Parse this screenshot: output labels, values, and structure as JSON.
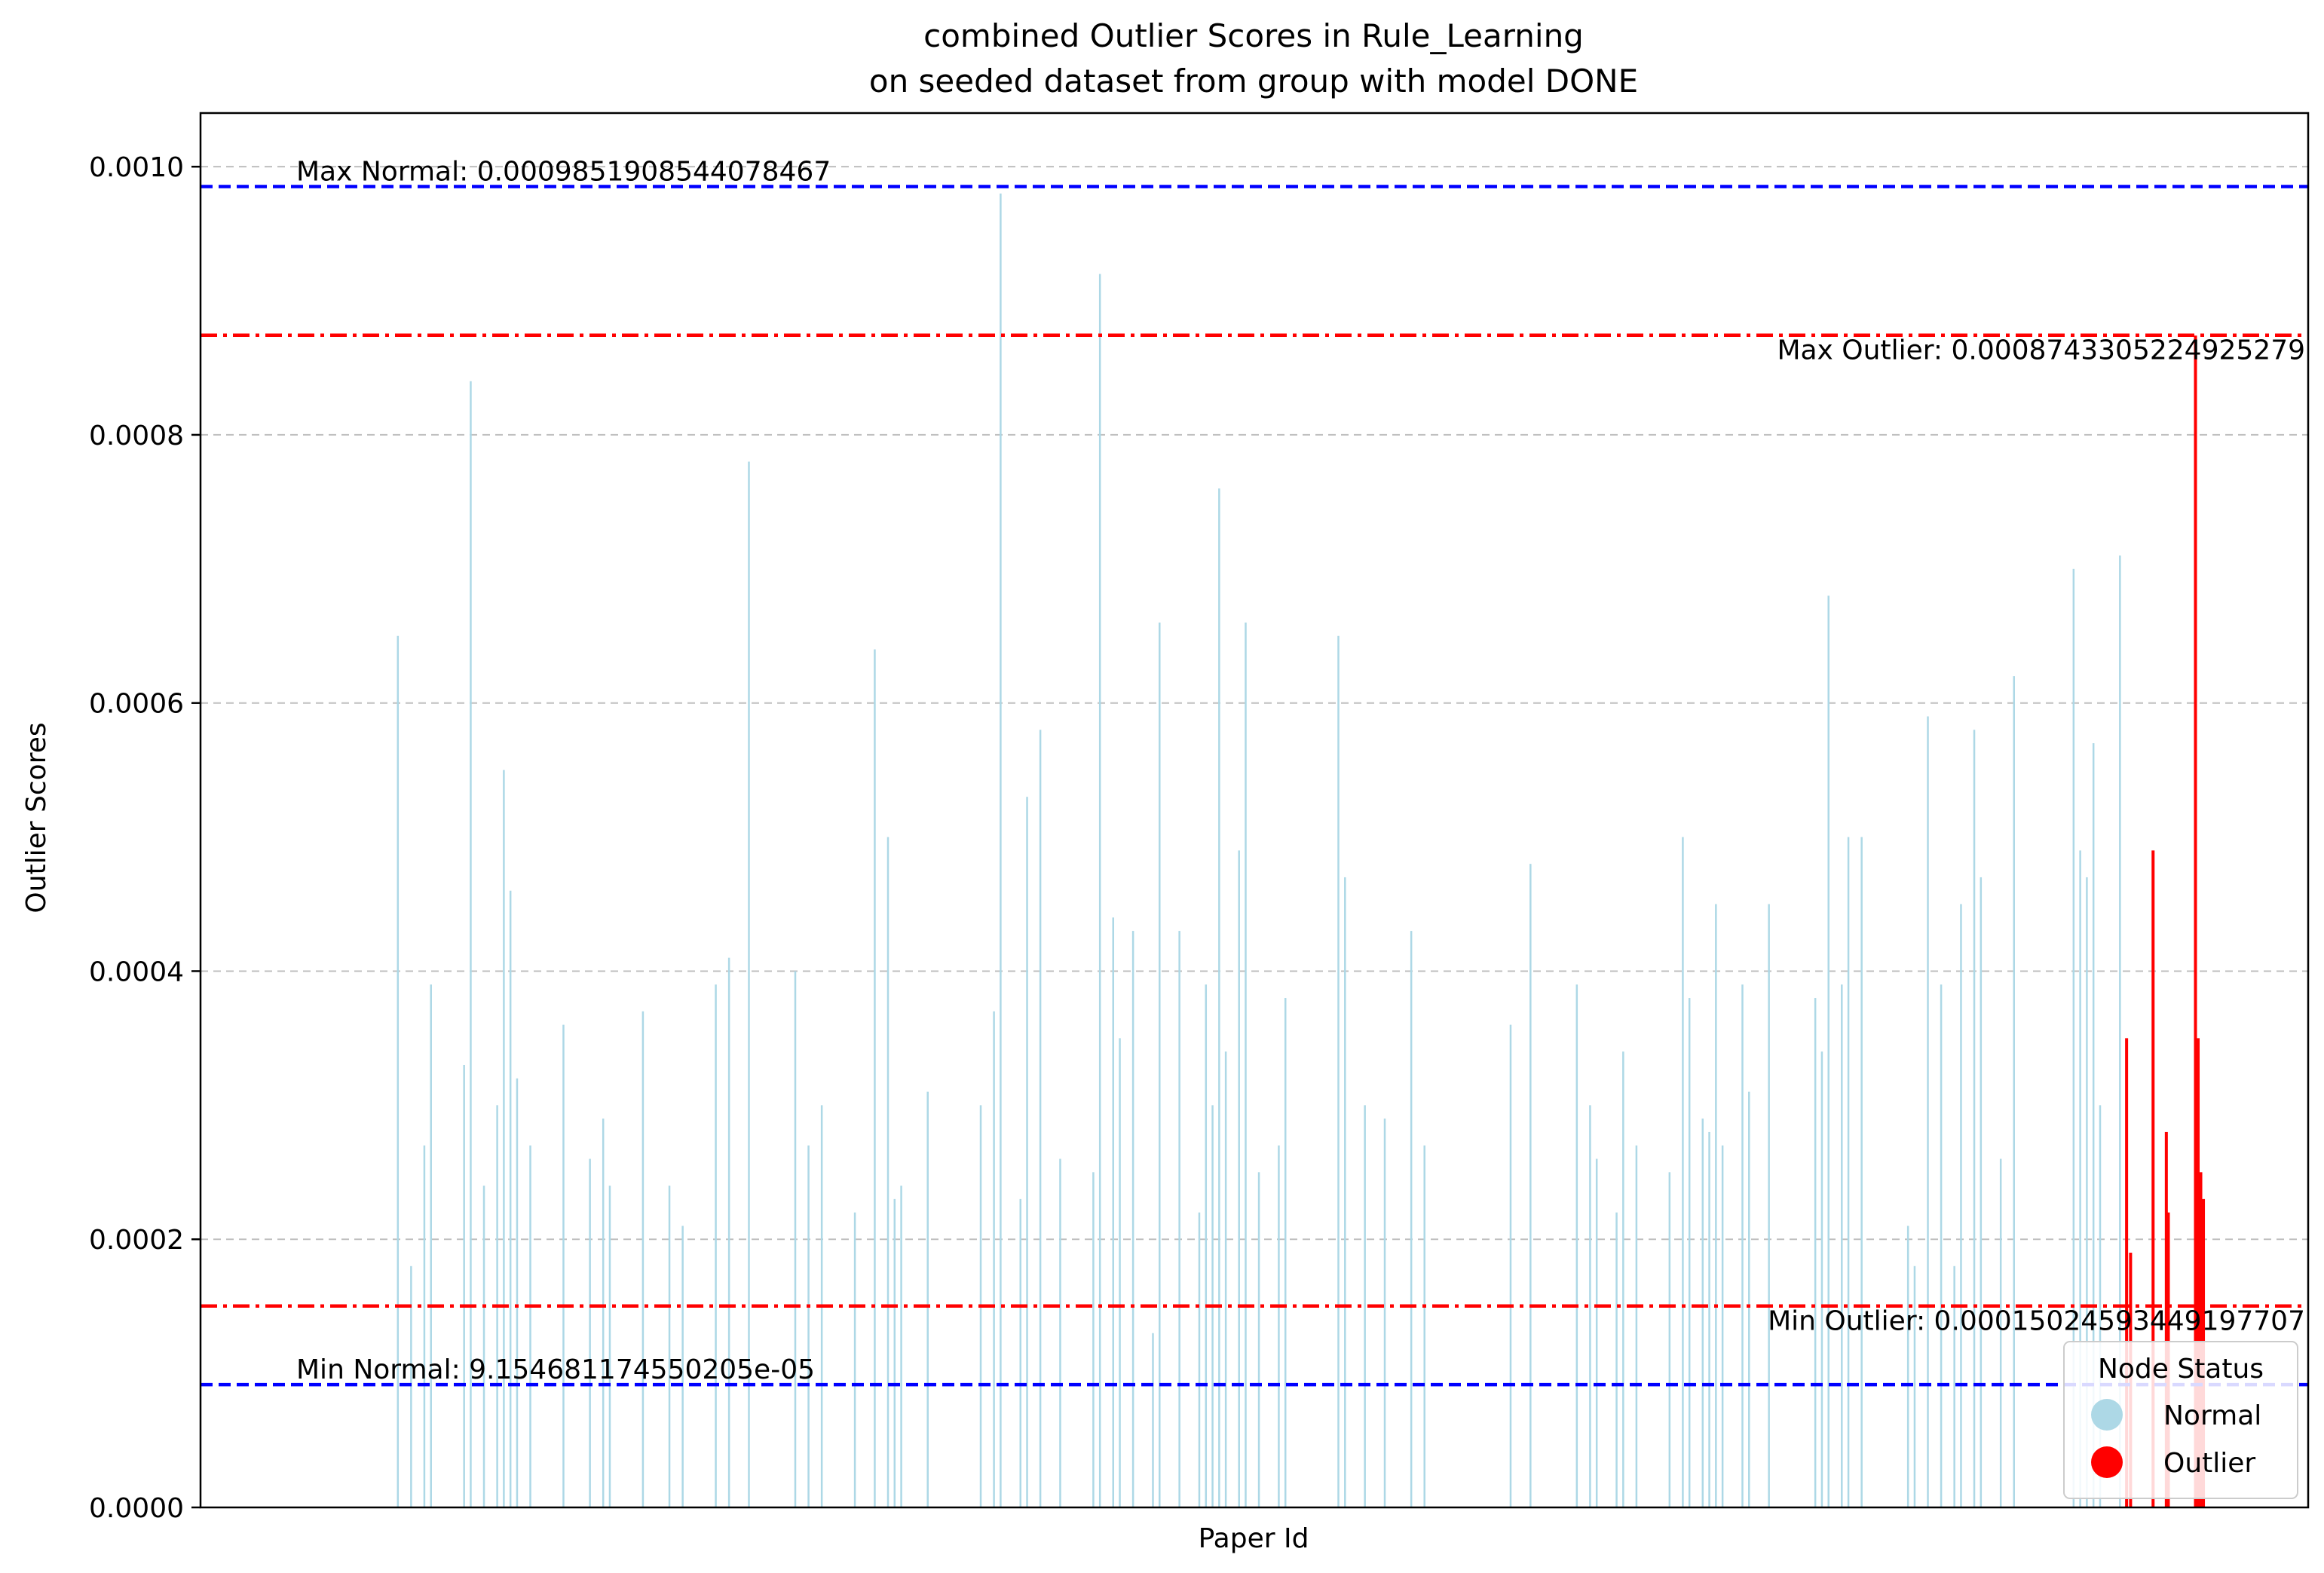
{
  "chart_data": {
    "type": "bar",
    "title_line1": "combined Outlier Scores in Rule_Learning",
    "title_line2": "on seeded dataset from group with model DONE",
    "xlabel": "Paper Id",
    "ylabel": "Outlier Scores",
    "ylim": [
      0,
      0.00104
    ],
    "yticks": [
      "0.0000",
      "0.0002",
      "0.0004",
      "0.0006",
      "0.0008",
      "0.0010"
    ],
    "grid": "y-dashed",
    "legend": {
      "title": "Node Status",
      "placement": "lower-right",
      "entries": [
        {
          "label": "Normal",
          "color": "#add8e6"
        },
        {
          "label": "Outlier",
          "color": "#ff0000"
        }
      ]
    },
    "reference_lines": [
      {
        "label": "Max Normal: 0.0009851908544078467",
        "value": 0.0009851908544078467,
        "color": "#0000ff",
        "style": "dashed",
        "label_align": "left"
      },
      {
        "label": "Max Outlier: 0.0008743305224925279",
        "value": 0.0008743305224925279,
        "color": "#ff0000",
        "style": "dashdot",
        "label_align": "right"
      },
      {
        "label": "Min Outlier: 0.00015024593449197707",
        "value": 0.00015024593449197707,
        "color": "#ff0000",
        "style": "dashdot",
        "label_align": "right"
      },
      {
        "label": "Min Normal: 9.154681174550205e-05",
        "value": 9.154681174550205e-05,
        "color": "#0000ff",
        "style": "dashed",
        "label_align": "left"
      }
    ],
    "x_count": 300,
    "series": [
      {
        "name": "Normal",
        "color": "#add8e6",
        "points": [
          [
            15,
            0.00065
          ],
          [
            17,
            0.00018
          ],
          [
            19,
            0.00027
          ],
          [
            20,
            0.00039
          ],
          [
            25,
            0.00033
          ],
          [
            26,
            0.00084
          ],
          [
            28,
            0.00024
          ],
          [
            30,
            0.0003
          ],
          [
            31,
            0.00055
          ],
          [
            32,
            0.00046
          ],
          [
            33,
            0.00032
          ],
          [
            35,
            0.00027
          ],
          [
            40,
            0.00036
          ],
          [
            44,
            0.00026
          ],
          [
            46,
            0.00029
          ],
          [
            47,
            0.00024
          ],
          [
            52,
            0.00037
          ],
          [
            56,
            0.00024
          ],
          [
            58,
            0.00021
          ],
          [
            63,
            0.00039
          ],
          [
            65,
            0.00041
          ],
          [
            68,
            0.00078
          ],
          [
            75,
            0.0004
          ],
          [
            77,
            0.00027
          ],
          [
            79,
            0.0003
          ],
          [
            84,
            0.00022
          ],
          [
            87,
            0.00064
          ],
          [
            89,
            0.0005
          ],
          [
            90,
            0.00023
          ],
          [
            91,
            0.00024
          ],
          [
            95,
            0.00031
          ],
          [
            103,
            0.0003
          ],
          [
            105,
            0.00037
          ],
          [
            106,
            0.00098
          ],
          [
            109,
            0.00023
          ],
          [
            110,
            0.00053
          ],
          [
            112,
            0.00058
          ],
          [
            115,
            0.00026
          ],
          [
            120,
            0.00025
          ],
          [
            121,
            0.00092
          ],
          [
            123,
            0.00044
          ],
          [
            124,
            0.00035
          ],
          [
            126,
            0.00043
          ],
          [
            129,
            0.00013
          ],
          [
            130,
            0.00066
          ],
          [
            133,
            0.00043
          ],
          [
            136,
            0.00022
          ],
          [
            137,
            0.00039
          ],
          [
            138,
            0.0003
          ],
          [
            139,
            0.00076
          ],
          [
            140,
            0.00034
          ],
          [
            142,
            0.00049
          ],
          [
            143,
            0.00066
          ],
          [
            145,
            0.00025
          ],
          [
            148,
            0.00027
          ],
          [
            149,
            0.00038
          ],
          [
            157,
            0.00065
          ],
          [
            158,
            0.00047
          ],
          [
            161,
            0.0003
          ],
          [
            164,
            0.00029
          ],
          [
            168,
            0.00043
          ],
          [
            170,
            0.00027
          ],
          [
            183,
            0.00036
          ],
          [
            186,
            0.00048
          ],
          [
            193,
            0.00039
          ],
          [
            195,
            0.0003
          ],
          [
            196,
            0.00026
          ],
          [
            199,
            0.00022
          ],
          [
            200,
            0.00034
          ],
          [
            202,
            0.00027
          ],
          [
            207,
            0.00025
          ],
          [
            209,
            0.0005
          ],
          [
            210,
            0.00038
          ],
          [
            212,
            0.00029
          ],
          [
            213,
            0.00028
          ],
          [
            214,
            0.00045
          ],
          [
            215,
            0.00027
          ],
          [
            218,
            0.00039
          ],
          [
            219,
            0.00031
          ],
          [
            222,
            0.00045
          ],
          [
            229,
            0.00038
          ],
          [
            230,
            0.00034
          ],
          [
            231,
            0.00068
          ],
          [
            233,
            0.00039
          ],
          [
            234,
            0.0005
          ],
          [
            236,
            0.0005
          ],
          [
            243,
            0.00021
          ],
          [
            244,
            0.00018
          ],
          [
            246,
            0.00059
          ],
          [
            248,
            0.00039
          ],
          [
            250,
            0.00018
          ],
          [
            251,
            0.00045
          ],
          [
            253,
            0.00058
          ],
          [
            254,
            0.00047
          ],
          [
            257,
            0.00026
          ],
          [
            259,
            0.00062
          ],
          [
            268,
            0.0007
          ],
          [
            269,
            0.00049
          ],
          [
            270,
            0.00047
          ],
          [
            271,
            0.00057
          ],
          [
            272,
            0.0003
          ],
          [
            275,
            0.00071
          ]
        ]
      },
      {
        "name": "Outlier",
        "color": "#ff0000",
        "points": [
          [
            276,
            0.00035
          ],
          [
            276.6,
            0.00019
          ],
          [
            280,
            0.00049
          ],
          [
            282,
            0.00028
          ],
          [
            282.3,
            0.00022
          ],
          [
            286.4,
            0.000874
          ],
          [
            286.8,
            0.00035
          ],
          [
            287.2,
            0.00025
          ],
          [
            287.6,
            0.00023
          ]
        ]
      }
    ]
  }
}
